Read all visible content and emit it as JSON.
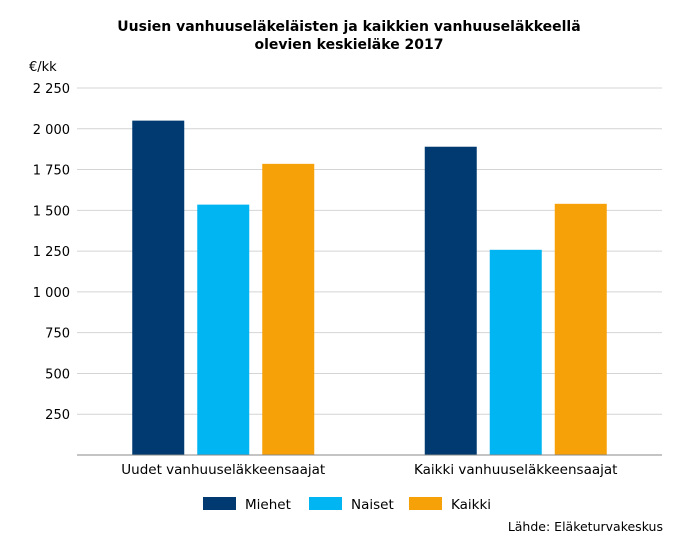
{
  "chart_data": {
    "type": "bar",
    "title_line1": "Uusien vanhuuseläkeläisten ja kaikkien vanhuuseläkkeellä",
    "title_line2": "olevien keskieläke 2017",
    "ylabel": "€/kk",
    "ylim": [
      0,
      2250
    ],
    "yticks": [
      250,
      500,
      750,
      1000,
      1250,
      1500,
      1750,
      2000,
      2250
    ],
    "ytick_labels": [
      "250",
      "500",
      "750",
      "1 000",
      "1 250",
      "1 500",
      "1 750",
      "2 000",
      "2 250"
    ],
    "grid": true,
    "legend_position": "bottom",
    "categories": [
      "Uudet vanhuuseläkkeensaajat",
      "Kaikki vanhuuseläkkeensaajat"
    ],
    "series": [
      {
        "name": "Miehet",
        "color": "#003a70",
        "values": [
          2050,
          1890
        ]
      },
      {
        "name": "Naiset",
        "color": "#00b5f1",
        "values": [
          1535,
          1258
        ]
      },
      {
        "name": "Kaikki",
        "color": "#f7a108",
        "values": [
          1785,
          1540
        ]
      }
    ]
  },
  "source": "Lähde: Eläketurvakeskus"
}
